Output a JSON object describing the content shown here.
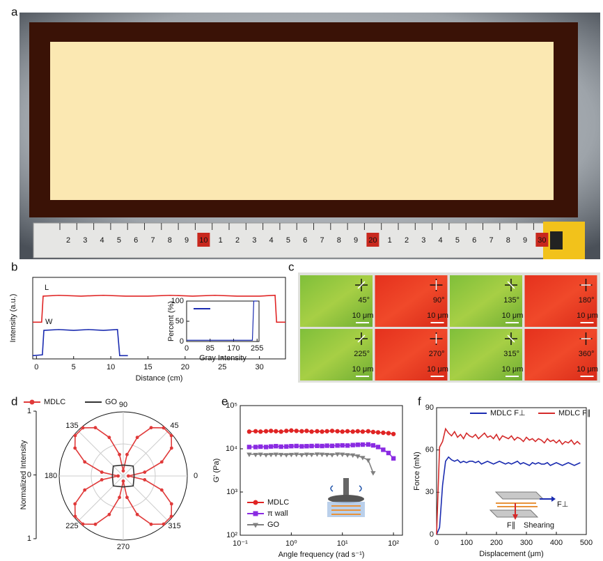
{
  "panel_labels": [
    "a",
    "b",
    "c",
    "d",
    "e",
    "f"
  ],
  "photo": {
    "ruler_labels": [
      "2",
      "3",
      "4",
      "5",
      "6",
      "7",
      "8",
      "9",
      "10",
      "1",
      "2",
      "3",
      "4",
      "5",
      "6",
      "7",
      "8",
      "9",
      "20",
      "1",
      "2",
      "3",
      "4",
      "5",
      "6",
      "7",
      "8",
      "9",
      "30"
    ]
  },
  "micrographs": {
    "angles": [
      "45°",
      "90°",
      "135°",
      "180°",
      "225°",
      "270°",
      "315°",
      "360°"
    ],
    "scale_bar": "10 μm"
  },
  "chart_data": [
    {
      "type": "line",
      "xlabel": "Distance (cm)",
      "ylabel": "Intensity (a.u.)",
      "xlim": [
        -0.5,
        33.5
      ],
      "ylim": [
        0,
        1
      ],
      "xticks": [
        0,
        5,
        10,
        15,
        20,
        25,
        30
      ],
      "legend": "inline",
      "series": [
        {
          "name": "L",
          "color": "#e02424",
          "x": [
            -0.5,
            0.7,
            0.9,
            3,
            6,
            9,
            12,
            15,
            18,
            21,
            24,
            27,
            30,
            32.1,
            32.3,
            33.5
          ],
          "values": [
            0.45,
            0.45,
            0.77,
            0.78,
            0.77,
            0.78,
            0.77,
            0.77,
            0.78,
            0.77,
            0.78,
            0.77,
            0.77,
            0.78,
            0.45,
            0.45
          ]
        },
        {
          "name": "W",
          "color": "#1a2bb0",
          "x": [
            -0.5,
            0.8,
            1.0,
            3,
            5,
            7,
            9,
            10.9,
            11.2,
            12.3
          ],
          "values": [
            0.04,
            0.05,
            0.35,
            0.36,
            0.35,
            0.36,
            0.35,
            0.36,
            0.04,
            0.04
          ]
        }
      ]
    },
    {
      "type": "line",
      "xlabel": "Gray Intensity",
      "ylabel": "Percent (%)",
      "xlim": [
        0,
        262
      ],
      "ylim": [
        0,
        100
      ],
      "xticks": [
        0,
        85,
        170,
        255
      ],
      "yticks": [
        0,
        50,
        100
      ],
      "series": [
        {
          "color": "#1a2bb0",
          "x": [
            0,
            238,
            243,
            248,
            255
          ],
          "values": [
            3,
            3,
            100,
            100,
            100
          ]
        }
      ]
    },
    {
      "type": "polar",
      "ylabel": "Normalized Intensity",
      "ylim": [
        -1,
        1
      ],
      "yticks": [
        {
          "value": -1,
          "label": "1"
        },
        0,
        1
      ],
      "angle_ticks": [
        0,
        45,
        90,
        135,
        180,
        225,
        270,
        315
      ],
      "legend": "above",
      "series": [
        {
          "name": "MDLC",
          "color": "#e03a3a",
          "marker": "o",
          "x": [
            0,
            10,
            20,
            30,
            40,
            50,
            60,
            70,
            80,
            90,
            100,
            110,
            120,
            130,
            140,
            150,
            160,
            170,
            180,
            190,
            200,
            210,
            220,
            230,
            240,
            250,
            260,
            270,
            280,
            290,
            300,
            310,
            320,
            330,
            340,
            350
          ],
          "values": [
            0.08,
            0.34,
            0.64,
            0.87,
            0.98,
            0.98,
            0.87,
            0.64,
            0.34,
            0.08,
            0.34,
            0.64,
            0.87,
            0.98,
            0.98,
            0.87,
            0.64,
            0.34,
            0.08,
            0.34,
            0.64,
            0.87,
            0.98,
            0.98,
            0.87,
            0.64,
            0.34,
            0.08,
            0.34,
            0.64,
            0.87,
            0.98,
            0.98,
            0.87,
            0.64,
            0.34
          ]
        },
        {
          "name": "GO",
          "color": "#333333",
          "x": [
            0,
            45,
            90,
            135,
            180,
            225,
            270,
            315
          ],
          "values": [
            0.17,
            0.22,
            0.17,
            0.22,
            0.17,
            0.22,
            0.17,
            0.22
          ]
        }
      ]
    },
    {
      "type": "line",
      "log_x": true,
      "log_y": true,
      "xlabel": "Angle frequency (rad s⁻¹)",
      "ylabel": "G' (Pa)",
      "xlim": [
        0.1,
        150
      ],
      "ylim": [
        100,
        100000
      ],
      "legend": "lower left",
      "xticks": [
        {
          "value": 0.1,
          "label": "10⁻¹"
        },
        {
          "value": 1,
          "label": "10⁰"
        },
        {
          "value": 10,
          "label": "10¹"
        },
        {
          "value": 100,
          "label": "10²"
        }
      ],
      "yticks": [
        {
          "value": 100,
          "label": "10²"
        },
        {
          "value": 1000,
          "label": "10³"
        },
        {
          "value": 10000,
          "label": "10⁴"
        },
        {
          "value": 100000,
          "label": "10⁵"
        }
      ],
      "x": [
        0.15,
        0.2,
        0.25,
        0.32,
        0.4,
        0.5,
        0.63,
        0.8,
        1,
        1.26,
        1.6,
        2,
        2.5,
        3.2,
        4,
        5,
        6.3,
        8,
        10,
        12.6,
        16,
        20,
        25,
        32,
        40,
        50,
        63,
        80,
        100
      ],
      "series": [
        {
          "name": "MDLC",
          "color": "#e02424",
          "marker": "o",
          "values": [
            25000,
            25500,
            25000,
            25500,
            26000,
            25500,
            25000,
            26000,
            26500,
            26000,
            25500,
            26000,
            25000,
            25500,
            25000,
            25500,
            26000,
            25500,
            25000,
            25500,
            25000,
            25500,
            25000,
            25500,
            24500,
            24000,
            23500,
            23000,
            22000
          ]
        },
        {
          "name": "π wall",
          "color": "#8a2be2",
          "marker": "s",
          "values": [
            11000,
            11000,
            11200,
            11000,
            11300,
            11500,
            11200,
            11300,
            11500,
            11600,
            11400,
            11500,
            11600,
            11700,
            11600,
            11800,
            11700,
            11900,
            12000,
            11900,
            12200,
            12400,
            12500,
            12600,
            12000,
            11000,
            9500,
            8000,
            6000
          ]
        },
        {
          "name": "GO",
          "color": "#808080",
          "marker": "v",
          "values": [
            7500,
            7400,
            7500,
            7300,
            7400,
            7500,
            7400,
            7300,
            7400,
            7500,
            7300,
            7500,
            7400,
            7600,
            7500,
            7400,
            7300,
            7600,
            7500,
            7300,
            7200,
            6800,
            6300,
            5500,
            2800,
            null,
            null,
            null,
            null
          ]
        }
      ]
    },
    {
      "type": "line",
      "xlabel": "Displacement (μm)",
      "ylabel": "Force (mN)",
      "xlim": [
        0,
        500
      ],
      "ylim": [
        0,
        90
      ],
      "xticks": [
        0,
        100,
        200,
        300,
        400,
        500
      ],
      "yticks": [
        0,
        30,
        60,
        90
      ],
      "legend": "upper right",
      "annotations": [
        "F⊥",
        "F∥",
        "Shearing"
      ],
      "x": [
        0,
        10,
        20,
        30,
        40,
        50,
        60,
        70,
        80,
        90,
        100,
        110,
        120,
        130,
        140,
        150,
        160,
        170,
        180,
        190,
        200,
        210,
        220,
        230,
        240,
        250,
        260,
        270,
        280,
        290,
        300,
        310,
        320,
        330,
        340,
        350,
        360,
        370,
        380,
        390,
        400,
        410,
        420,
        430,
        440,
        450,
        460,
        470,
        480
      ],
      "series": [
        {
          "name": "MDLC F⊥",
          "color": "#1a2bb0",
          "values": [
            0,
            5,
            35,
            52,
            55,
            53,
            52,
            53,
            51,
            52,
            51,
            52,
            52,
            51,
            52,
            50,
            51,
            52,
            51,
            50,
            51,
            52,
            51,
            50,
            51,
            50,
            51,
            52,
            50,
            51,
            50,
            49,
            51,
            50,
            51,
            50,
            50,
            51,
            49,
            50,
            51,
            50,
            49,
            50,
            51,
            50,
            49,
            50,
            51
          ]
        },
        {
          "name": "MDLC F∥",
          "color": "#d42a2a",
          "values": [
            0,
            62,
            66,
            75,
            72,
            70,
            73,
            69,
            71,
            68,
            72,
            70,
            69,
            71,
            68,
            70,
            72,
            69,
            70,
            68,
            71,
            67,
            70,
            69,
            68,
            70,
            67,
            69,
            68,
            66,
            69,
            67,
            68,
            66,
            68,
            67,
            65,
            68,
            66,
            67,
            65,
            67,
            64,
            66,
            65,
            67,
            64,
            66,
            64
          ]
        }
      ]
    }
  ]
}
